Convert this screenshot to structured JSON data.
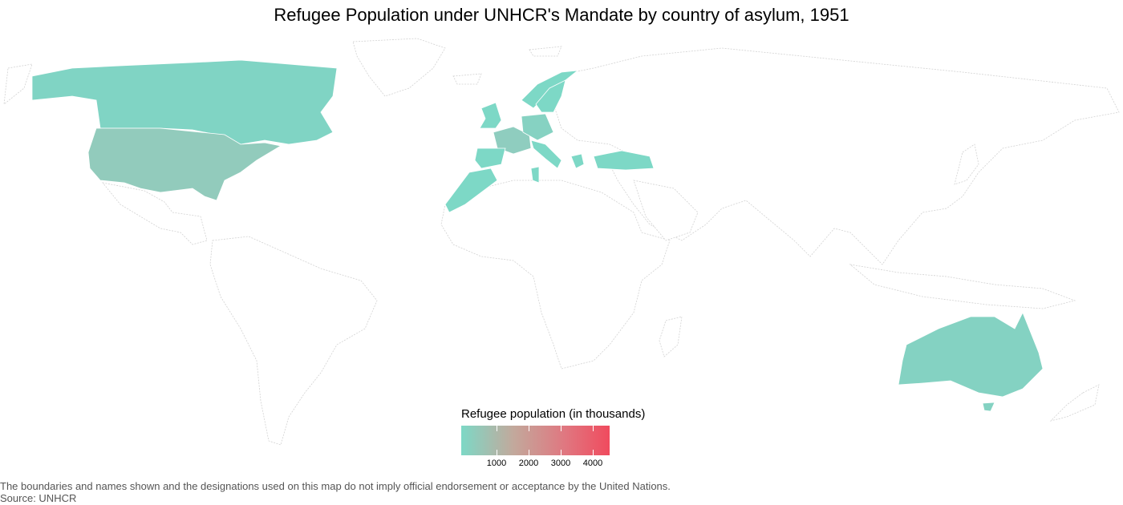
{
  "title": "Refugee Population under UNHCR's Mandate by country of asylum,  1951",
  "legend": {
    "title": "Refugee population (in thousands)",
    "ticks": [
      "1000",
      "2000",
      "3000",
      "4000"
    ],
    "color_low": "#7dd8c6",
    "color_high": "#f04b5e"
  },
  "map_data": {
    "type": "choropleth",
    "shaded_regions": [
      {
        "name": "Canada",
        "color": "#80d4c4"
      },
      {
        "name": "United States",
        "color": "#92cbbc"
      },
      {
        "name": "United Kingdom",
        "color": "#7dd8c6"
      },
      {
        "name": "France",
        "color": "#8fcdbf"
      },
      {
        "name": "Germany",
        "color": "#86d2c2"
      },
      {
        "name": "Norway",
        "color": "#7dd8c6"
      },
      {
        "name": "Sweden",
        "color": "#7dd8c6"
      },
      {
        "name": "Spain",
        "color": "#7dd8c6"
      },
      {
        "name": "Italy",
        "color": "#7dd8c6"
      },
      {
        "name": "Morocco",
        "color": "#7dd8c6"
      },
      {
        "name": "Tunisia",
        "color": "#7dd8c6"
      },
      {
        "name": "Greece",
        "color": "#7dd8c6"
      },
      {
        "name": "Turkey",
        "color": "#7dd8c6"
      },
      {
        "name": "Australia",
        "color": "#84d2c2"
      }
    ]
  },
  "footer": {
    "disclaimer": "The boundaries and names shown and the designations used on this map do not imply official endorsement or acceptance by the United Nations.",
    "source": "Source: UNHCR"
  }
}
